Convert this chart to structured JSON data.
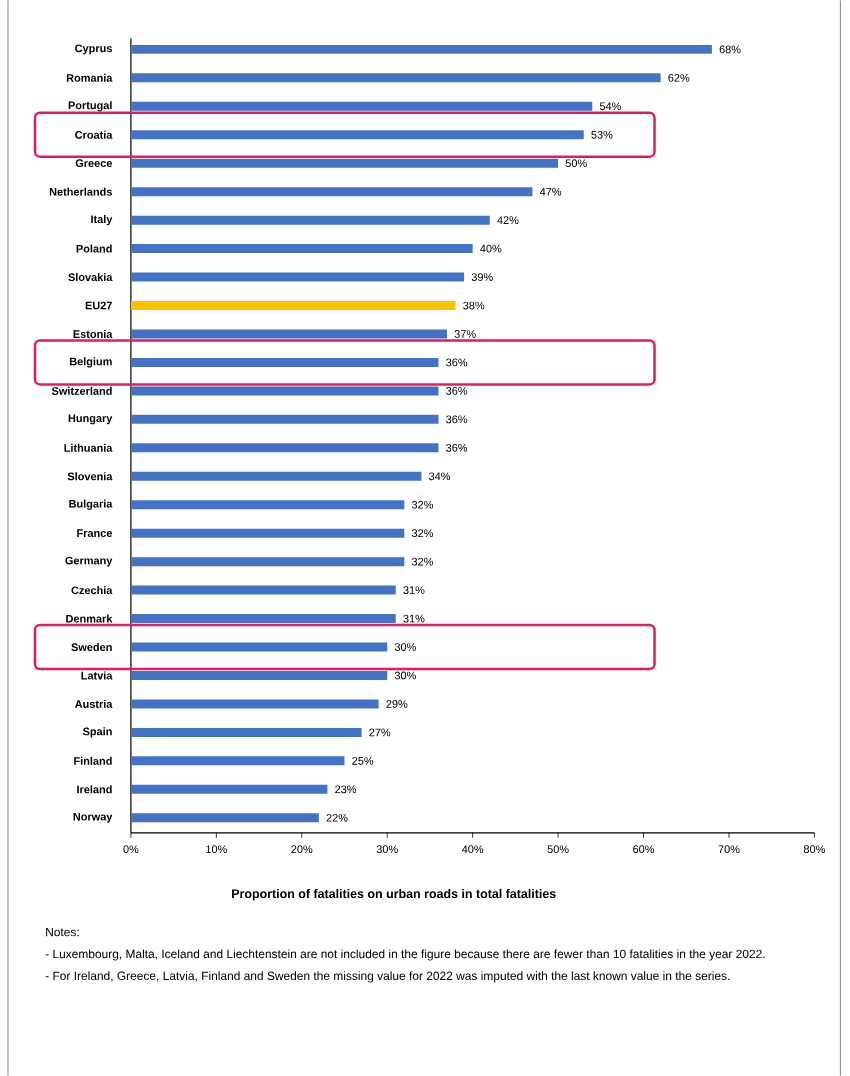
{
  "chart_data": {
    "type": "bar",
    "orientation": "horizontal",
    "categories": [
      "Cyprus",
      "Romania",
      "Portugal",
      "Croatia",
      "Greece",
      "Netherlands",
      "Italy",
      "Poland",
      "Slovakia",
      "EU27",
      "Estonia",
      "Belgium",
      "Switzerland",
      "Hungary",
      "Lithuania",
      "Slovenia",
      "Bulgaria",
      "France",
      "Germany",
      "Czechia",
      "Denmark",
      "Sweden",
      "Latvia",
      "Austria",
      "Spain",
      "Finland",
      "Ireland",
      "Norway"
    ],
    "values": [
      68,
      62,
      54,
      53,
      50,
      47,
      42,
      40,
      39,
      38,
      37,
      36,
      36,
      36,
      36,
      34,
      32,
      32,
      32,
      31,
      31,
      30,
      30,
      29,
      27,
      25,
      23,
      22
    ],
    "value_labels": [
      "68%",
      "62%",
      "54%",
      "53%",
      "50%",
      "47%",
      "42%",
      "40%",
      "39%",
      "38%",
      "37%",
      "36%",
      "36%",
      "36%",
      "36%",
      "34%",
      "32%",
      "32%",
      "32%",
      "31%",
      "31%",
      "30%",
      "30%",
      "29%",
      "27%",
      "25%",
      "23%",
      "22%"
    ],
    "colors": [
      "#4472c4",
      "#4472c4",
      "#4472c4",
      "#4472c4",
      "#4472c4",
      "#4472c4",
      "#4472c4",
      "#4472c4",
      "#4472c4",
      "#ffc000",
      "#4472c4",
      "#4472c4",
      "#4472c4",
      "#4472c4",
      "#4472c4",
      "#4472c4",
      "#4472c4",
      "#4472c4",
      "#4472c4",
      "#4472c4",
      "#4472c4",
      "#4472c4",
      "#4472c4",
      "#4472c4",
      "#4472c4",
      "#4472c4",
      "#4472c4",
      "#4472c4"
    ],
    "xlim": [
      0,
      80
    ],
    "xticks": [
      {
        "value": 0,
        "label": "0%"
      },
      {
        "value": 10,
        "label": "10%"
      },
      {
        "value": 20,
        "label": "20%"
      },
      {
        "value": 30,
        "label": "30%"
      },
      {
        "value": 40,
        "label": "40%"
      },
      {
        "value": 50,
        "label": "50%"
      },
      {
        "value": 60,
        "label": "60%"
      },
      {
        "value": 70,
        "label": "70%"
      },
      {
        "value": 80,
        "label": "80%"
      }
    ],
    "xlabel": "Proportion of fatalities on urban roads in total fatalities",
    "annotations": [
      "Notes:",
      "- Luxembourg, Malta, Iceland and Liechtenstein are not included in the figure because there are fewer than 10 fatalities in the year 2022.",
      "- For Ireland, Greece, Latvia, Finland and Sweden the missing value for 2022 was imputed with the last known value in the series."
    ]
  }
}
